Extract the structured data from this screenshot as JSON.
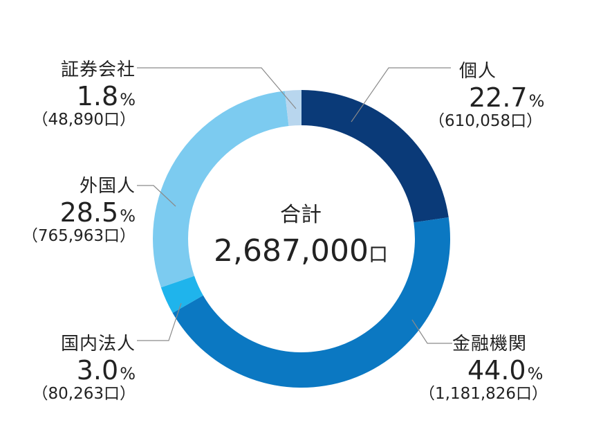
{
  "chart_data": {
    "type": "pie",
    "center_title": "合計",
    "center_value": "2,687,000",
    "center_unit": "口",
    "percent_unit": "%",
    "slices": [
      {
        "name": "個人",
        "percent": 22.7,
        "percent_label": "22.7",
        "count_label": "（610,058口）",
        "color": "#0a3a78"
      },
      {
        "name": "金融機関",
        "percent": 44.0,
        "percent_label": "44.0",
        "count_label": "（1,181,826口）",
        "color": "#0b78c2"
      },
      {
        "name": "国内法人",
        "percent": 3.0,
        "percent_label": "3.0",
        "count_label": "（80,263口）",
        "color": "#1fb4ec"
      },
      {
        "name": "外国人",
        "percent": 28.5,
        "percent_label": "28.5",
        "count_label": "（765,963口）",
        "color": "#7ccbf0"
      },
      {
        "name": "証券会社",
        "percent": 1.8,
        "percent_label": "1.8",
        "count_label": "（48,890口）",
        "color": "#b8d6ee"
      }
    ]
  }
}
